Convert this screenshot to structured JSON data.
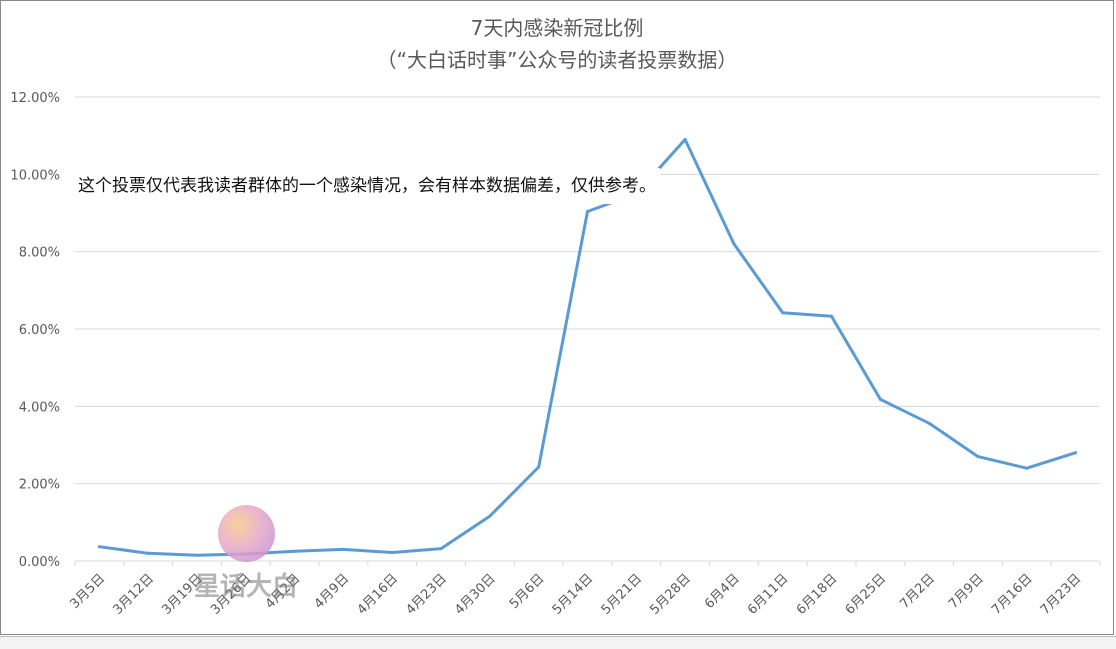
{
  "chart_data": {
    "type": "line",
    "title": "7天内感染新冠比例",
    "subtitle": "（“大白话时事”公众号的读者投票数据）",
    "categories": [
      "3月5日",
      "3月12日",
      "3月19日",
      "3月26日",
      "4月2日",
      "4月9日",
      "4月16日",
      "4月23日",
      "4月30日",
      "5月6日",
      "5月14日",
      "5月21日",
      "5月28日",
      "6月4日",
      "6月11日",
      "6月18日",
      "6月25日",
      "7月2日",
      "7月9日",
      "7月16日",
      "7月23日"
    ],
    "series": [
      {
        "values": [
          0.37,
          0.2,
          0.15,
          0.18,
          0.25,
          0.3,
          0.22,
          0.32,
          1.16,
          2.43,
          9.04,
          9.5,
          10.9,
          8.2,
          6.42,
          6.33,
          4.18,
          3.56,
          2.7,
          2.4,
          2.8
        ],
        "color": "#5b9bd5"
      }
    ],
    "y_ticks": [
      "0.00%",
      "2.00%",
      "4.00%",
      "6.00%",
      "8.00%",
      "10.00%",
      "12.00%"
    ],
    "ylim": [
      0,
      12
    ],
    "grid": true,
    "annotation": "这个投票仅代表我读者群体的一个感染情况，会有样本数据偏差，仅供参考。"
  },
  "watermark": {
    "text": "星话大白"
  }
}
